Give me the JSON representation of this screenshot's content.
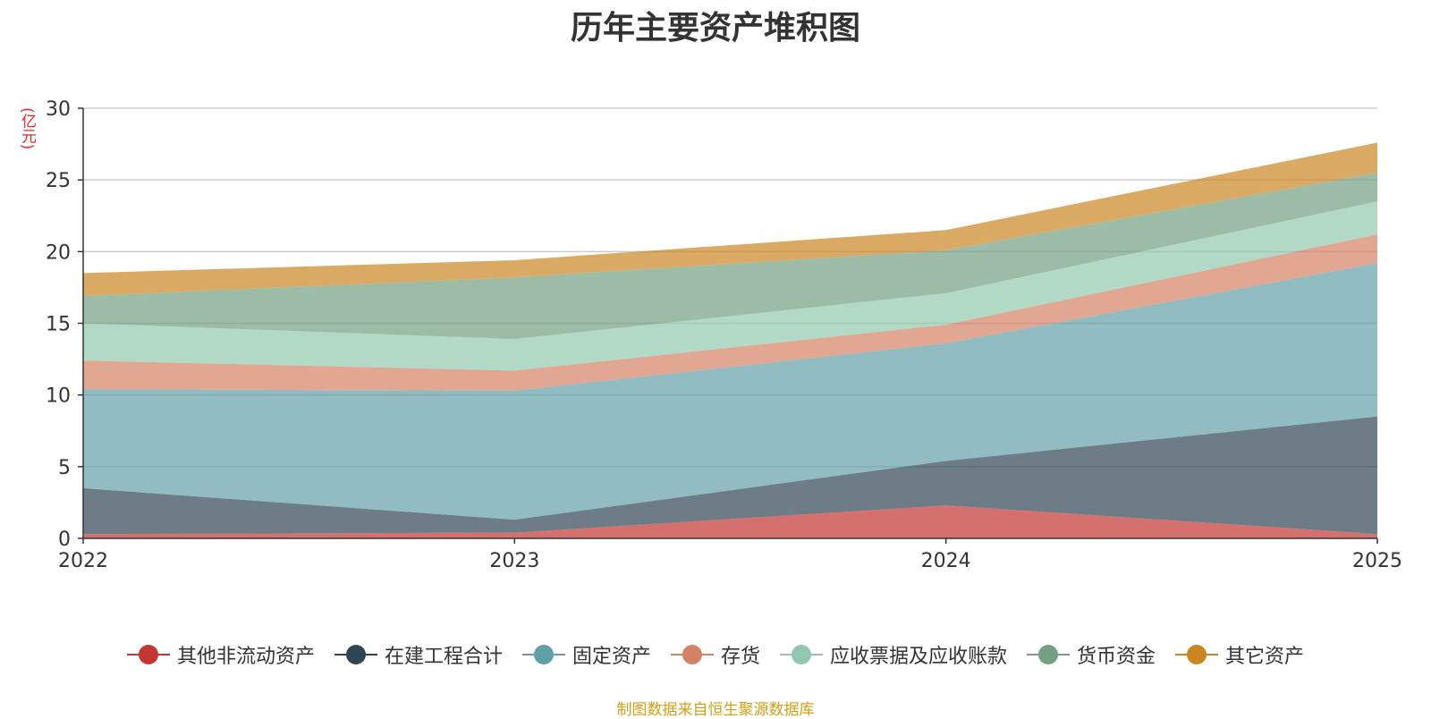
{
  "chart_data": {
    "type": "area",
    "stacked": true,
    "title": "历年主要资产堆积图",
    "y_unit": "(亿元)",
    "x": [
      "2022",
      "2023",
      "2024",
      "2025"
    ],
    "ylim": [
      0,
      30
    ],
    "yticks": [
      0,
      5,
      10,
      15,
      20,
      25,
      30
    ],
    "grid": true,
    "legend_position": "bottom",
    "series": [
      {
        "name": "其他非流动资产",
        "color": "#c23531",
        "values": [
          0.3,
          0.4,
          2.3,
          0.3
        ]
      },
      {
        "name": "在建工程合计",
        "color": "#2f4554",
        "values": [
          3.2,
          0.9,
          3.1,
          8.2
        ]
      },
      {
        "name": "固定资产",
        "color": "#61a0a8",
        "values": [
          6.9,
          9.0,
          8.2,
          10.7
        ]
      },
      {
        "name": "存货",
        "color": "#d48265",
        "values": [
          2.0,
          1.4,
          1.3,
          2.0
        ]
      },
      {
        "name": "应收票据及应收账款",
        "color": "#91c7ae",
        "values": [
          2.6,
          2.2,
          2.2,
          2.3
        ]
      },
      {
        "name": "货币资金",
        "color": "#749f83",
        "values": [
          1.9,
          4.3,
          3.0,
          2.0
        ]
      },
      {
        "name": "其它资产",
        "color": "#ca8622",
        "values": [
          1.6,
          1.2,
          1.4,
          2.1
        ]
      }
    ],
    "source": "制图数据来自恒生聚源数据库"
  }
}
